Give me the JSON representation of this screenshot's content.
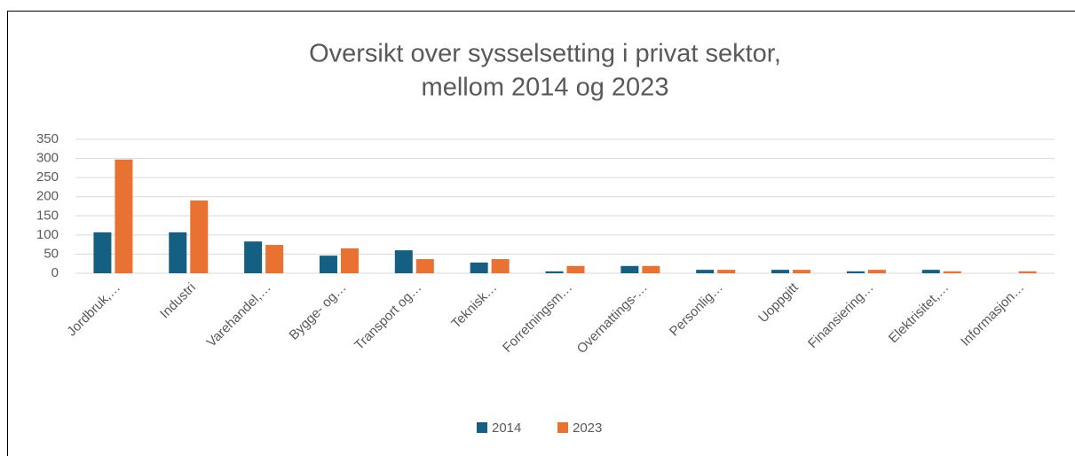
{
  "chart_data": {
    "type": "bar",
    "title": [
      "Oversikt over sysselsetting i privat sektor,",
      "mellom 2014 og 2023"
    ],
    "categories": [
      "Jordbruk,…",
      "Industri",
      "Varehandel,…",
      "Bygge- og…",
      "Transport og…",
      "Teknisk…",
      "Forretningsm…",
      "Overnattings-…",
      "Personlig…",
      "Uoppgitt",
      "Finansiering…",
      "Elektrisitet,…",
      "Informasjon…"
    ],
    "series": [
      {
        "name": "2014",
        "color": "#156082",
        "values": [
          107,
          107,
          83,
          46,
          60,
          28,
          5,
          19,
          9,
          9,
          5,
          9,
          0
        ]
      },
      {
        "name": "2023",
        "color": "#e97132",
        "values": [
          297,
          190,
          74,
          65,
          37,
          37,
          19,
          19,
          9,
          9,
          9,
          5,
          5
        ]
      }
    ],
    "ylim": [
      0,
      350
    ],
    "yticks": [
      0,
      50,
      100,
      150,
      200,
      250,
      300,
      350
    ],
    "grid": true,
    "legend": "bottom"
  }
}
